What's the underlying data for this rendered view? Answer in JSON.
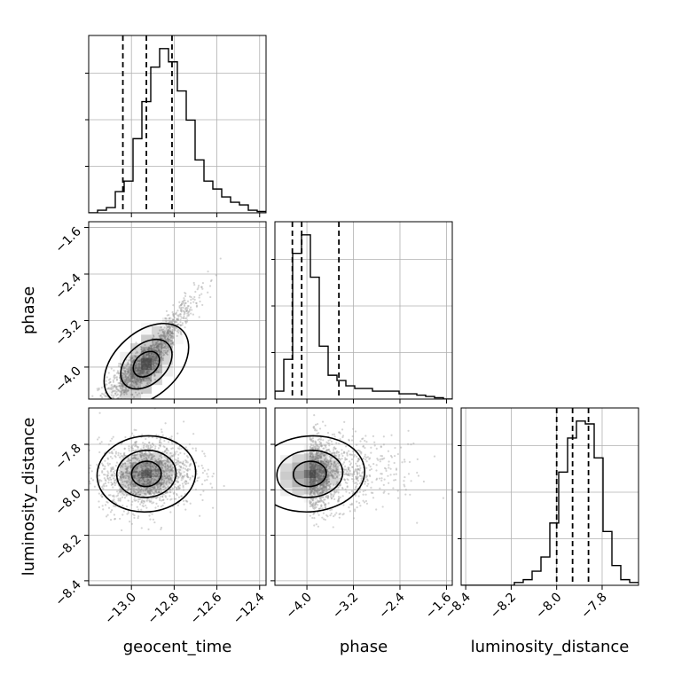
{
  "chart_data": {
    "type": "corner",
    "parameters": [
      "geocent_time",
      "phase",
      "luminosity_distance"
    ],
    "axis_labels": {
      "x": [
        "geocent_time",
        "phase",
        "luminosity_distance"
      ],
      "y": [
        "",
        "phase",
        "luminosity_distance"
      ]
    },
    "ranges": {
      "geocent_time": [
        -13.2,
        -12.37
      ],
      "phase": [
        -4.55,
        -1.5
      ],
      "luminosity_distance": [
        -8.42,
        -7.64
      ]
    },
    "ticks": {
      "geocent_time": [
        -13.0,
        -12.8,
        -12.6,
        -12.4
      ],
      "phase": [
        -4.0,
        -3.2,
        -2.4,
        -1.6
      ],
      "luminosity_distance": [
        -8.4,
        -8.2,
        -8.0,
        -7.8
      ]
    },
    "tick_labels": {
      "geocent_time": [
        "−13.0",
        "−12.8",
        "−12.6",
        "−12.4"
      ],
      "phase": [
        "−4.0",
        "−3.2",
        "−2.4",
        "−1.6"
      ],
      "luminosity_distance": [
        "−8.4",
        "−8.2",
        "−8.0",
        "−7.8"
      ]
    },
    "quantiles": {
      "geocent_time": [
        -13.04,
        -12.93,
        -12.81
      ],
      "phase": [
        -4.25,
        -4.09,
        -3.45
      ],
      "luminosity_distance": [
        -8.0,
        -7.93,
        -7.86
      ]
    },
    "histograms": {
      "geocent_time": {
        "range": [
          -13.2,
          -12.37
        ],
        "counts": [
          0,
          1,
          2,
          8,
          12,
          28,
          42,
          55,
          62,
          57,
          46,
          35,
          20,
          12,
          9,
          6,
          4,
          3,
          1,
          0.5
        ]
      },
      "phase": {
        "range": [
          -4.55,
          -1.5
        ],
        "counts": [
          3,
          15,
          55,
          62,
          46,
          20,
          9,
          7,
          5,
          4,
          4,
          3,
          3,
          3,
          2,
          2,
          1.5,
          1,
          0.5,
          0
        ]
      },
      "luminosity_distance": {
        "range": [
          -8.42,
          -7.64
        ],
        "counts": [
          0,
          0,
          0,
          0,
          0,
          0,
          1,
          2,
          5,
          10,
          22,
          40,
          52,
          58,
          57,
          45,
          19,
          7,
          2,
          1
        ]
      }
    },
    "samples": {
      "means": {
        "geocent_time": -12.93,
        "phase": -3.95,
        "luminosity_distance": -7.93
      },
      "sds": {
        "geocent_time": 0.11,
        "phase": 0.45,
        "luminosity_distance": 0.08
      },
      "correlations": {
        "geocent_time__phase": 0.82,
        "geocent_time__luminosity_distance": 0.1,
        "phase__luminosity_distance": 0.12
      }
    },
    "grid": true,
    "colors": {
      "line": "#000000",
      "grid": "#b0b0b0",
      "scatter": "#a0a0a0"
    }
  }
}
